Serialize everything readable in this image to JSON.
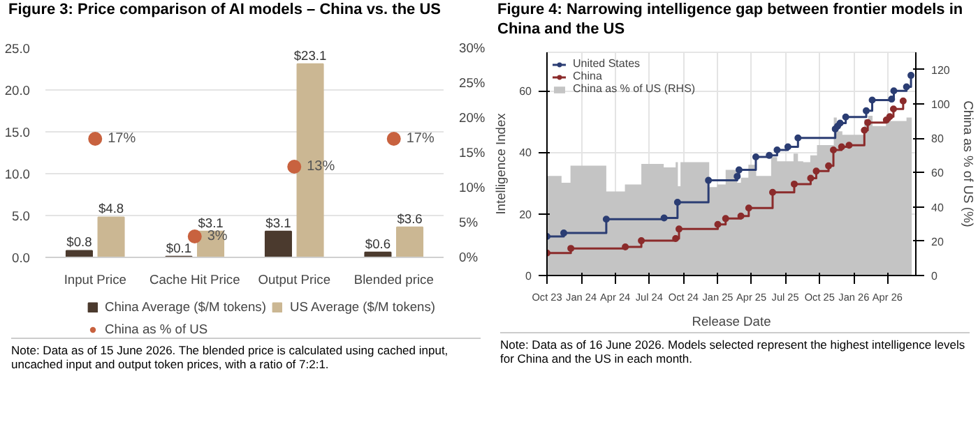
{
  "chart_data": [
    {
      "type": "bar",
      "title": "Figure 3: Price comparison of AI models – China vs. the US",
      "categories": [
        "Input Price",
        "Cache Hit Price",
        "Output Price",
        "Blended price"
      ],
      "series": [
        {
          "name": "China Average ($/M tokens)",
          "color": "#4b3a2e",
          "values": [
            0.8,
            0.1,
            3.1,
            0.6
          ],
          "value_labels": [
            "$0.8",
            "$0.1",
            "$3.1",
            "$0.6"
          ]
        },
        {
          "name": "US Average ($/M tokens)",
          "color": "#cbb793",
          "values": [
            4.8,
            3.1,
            23.1,
            3.6
          ],
          "value_labels": [
            "$4.8",
            "$3.1",
            "$23.1",
            "$3.6"
          ]
        },
        {
          "name": "China as % of US",
          "type": "scatter",
          "axis": "y2",
          "marker": "circle",
          "color": "#c8623f",
          "values": [
            17,
            3,
            13,
            17
          ],
          "value_labels": [
            "17%",
            "3%",
            "13%",
            "17%"
          ]
        }
      ],
      "ylim": [
        0,
        25
      ],
      "yticks": [
        {
          "value": 0,
          "label": "0.0"
        },
        {
          "value": 5,
          "label": "5.0"
        },
        {
          "value": 10,
          "label": "10.0"
        },
        {
          "value": 15,
          "label": "15.0"
        },
        {
          "value": 20,
          "label": "20.0"
        },
        {
          "value": 25,
          "label": "25.0"
        }
      ],
      "y2lim": [
        0,
        30
      ],
      "y2ticks": [
        {
          "value": 0,
          "label": "0%"
        },
        {
          "value": 5,
          "label": "5%"
        },
        {
          "value": 10,
          "label": "10%"
        },
        {
          "value": 15,
          "label": "15%"
        },
        {
          "value": 20,
          "label": "20%"
        },
        {
          "value": 25,
          "label": "25%"
        },
        {
          "value": 30,
          "label": "30%"
        }
      ],
      "grid": "y",
      "legend": "bottom",
      "annotations": [
        "Note: Data as of 15 June 2026. The blended price is calculated using cached input, uncached input and output token prices, with a ratio of 7:2:1."
      ]
    },
    {
      "type": "step",
      "title": "Figure 4: Narrowing intelligence gap between frontier models in China and the US",
      "xlabel": "Release Date",
      "ylabel": "Intelligence Index",
      "y2label": "China as % of US (%)",
      "series": [
        {
          "name": "China as % of US (RHS)",
          "type": "area",
          "axis": "y2",
          "color": "#c4c4c4",
          "x": [
            "2023-10-01",
            "2023-11-09",
            "2023-12-03",
            "2024-03-08",
            "2024-04-27",
            "2024-06-10",
            "2024-08-09",
            "2024-09-10",
            "2024-09-16",
            "2024-09-23",
            "2024-12-09",
            "2024-12-30",
            "2025-01-22",
            "2025-02-22",
            "2025-03-04",
            "2025-03-24",
            "2025-04-14",
            "2025-05-24",
            "2025-06-09",
            "2025-07-23",
            "2025-08-04",
            "2025-08-18",
            "2025-09-06",
            "2025-09-24",
            "2025-11-08",
            "2025-11-16",
            "2025-12-01",
            "2026-01-29",
            "2026-02-08",
            "2026-02-20",
            "2026-03-28",
            "2026-05-22",
            "2026-06-05"
          ],
          "values": [
            58,
            54,
            64,
            49,
            53,
            65,
            63,
            66,
            52,
            66,
            51.5,
            53,
            61.5,
            54,
            57,
            64.5,
            58,
            69,
            66.5,
            71,
            66.5,
            66,
            70,
            76,
            92,
            84,
            82,
            91,
            93,
            87,
            90,
            92,
            92
          ]
        },
        {
          "name": "United States",
          "color": "#2b3d73",
          "marker": "circle",
          "x": [
            "2023-10-01",
            "2023-11-15",
            "2024-03-08",
            "2024-08-10",
            "2024-09-15",
            "2024-12-07",
            "2025-02-22",
            "2025-02-27",
            "2025-04-13",
            "2025-05-19",
            "2025-06-09",
            "2025-07-08",
            "2025-08-04",
            "2025-11-12",
            "2025-11-18",
            "2025-11-25",
            "2025-12-10",
            "2026-02-03",
            "2026-02-19",
            "2026-04-12",
            "2026-04-18",
            "2026-05-22",
            "2026-06-03"
          ],
          "values": [
            12.7,
            13.8,
            18.3,
            18.7,
            23.8,
            30.9,
            32.2,
            34.3,
            38.5,
            39,
            40.8,
            41.8,
            44.7,
            47.6,
            48.5,
            49.5,
            51.5,
            53.5,
            57,
            57.3,
            60,
            61.3,
            65
          ]
        },
        {
          "name": "China",
          "color": "#8b2b2b",
          "marker": "circle",
          "x": [
            "2023-10-01",
            "2023-12-04",
            "2024-04-28",
            "2024-06-10",
            "2024-09-10",
            "2024-09-19",
            "2025-01-01",
            "2025-01-22",
            "2025-03-04",
            "2025-03-25",
            "2025-05-28",
            "2025-07-25",
            "2025-09-07",
            "2025-09-22",
            "2025-10-25",
            "2025-11-07",
            "2025-11-29",
            "2025-12-19",
            "2026-01-29",
            "2026-02-07",
            "2026-03-29",
            "2026-04-07",
            "2026-04-17",
            "2026-05-13"
          ],
          "values": [
            7.3,
            8.8,
            9.3,
            11.3,
            12,
            15.1,
            16.6,
            18.5,
            19.3,
            21.9,
            27,
            29.7,
            31.6,
            33.9,
            35.6,
            40.8,
            41.8,
            42.3,
            47.2,
            49.7,
            50.5,
            51.6,
            54.1,
            56.7
          ]
        }
      ],
      "xlim": [
        "2023-10-01",
        "2026-06-16"
      ],
      "xticks": [
        {
          "value": "2023-10-01",
          "label": "Oct 23"
        },
        {
          "value": "2024-01-01",
          "label": "Jan 24"
        },
        {
          "value": "2024-04-01",
          "label": "Apr 24"
        },
        {
          "value": "2024-07-01",
          "label": "Jul 24"
        },
        {
          "value": "2024-10-01",
          "label": "Oct 24"
        },
        {
          "value": "2025-01-01",
          "label": "Jan 25"
        },
        {
          "value": "2025-04-01",
          "label": "Apr 25"
        },
        {
          "value": "2025-07-01",
          "label": "Jul 25"
        },
        {
          "value": "2025-10-01",
          "label": "Oct 25"
        },
        {
          "value": "2026-01-01",
          "label": "Jan 26"
        },
        {
          "value": "2026-04-01",
          "label": "Apr 26"
        }
      ],
      "ylim": [
        0,
        72.5
      ],
      "yticks": [
        0,
        20,
        40,
        60
      ],
      "y2lim": [
        0,
        130
      ],
      "y2ticks": [
        0,
        20,
        40,
        60,
        80,
        100,
        120
      ],
      "grid": true,
      "legend": "top left",
      "line_style": "solid",
      "annotations": [
        "Note: Data as of 16 June 2026. Models selected represent the highest intelligence levels for China and the US in each month."
      ]
    }
  ]
}
